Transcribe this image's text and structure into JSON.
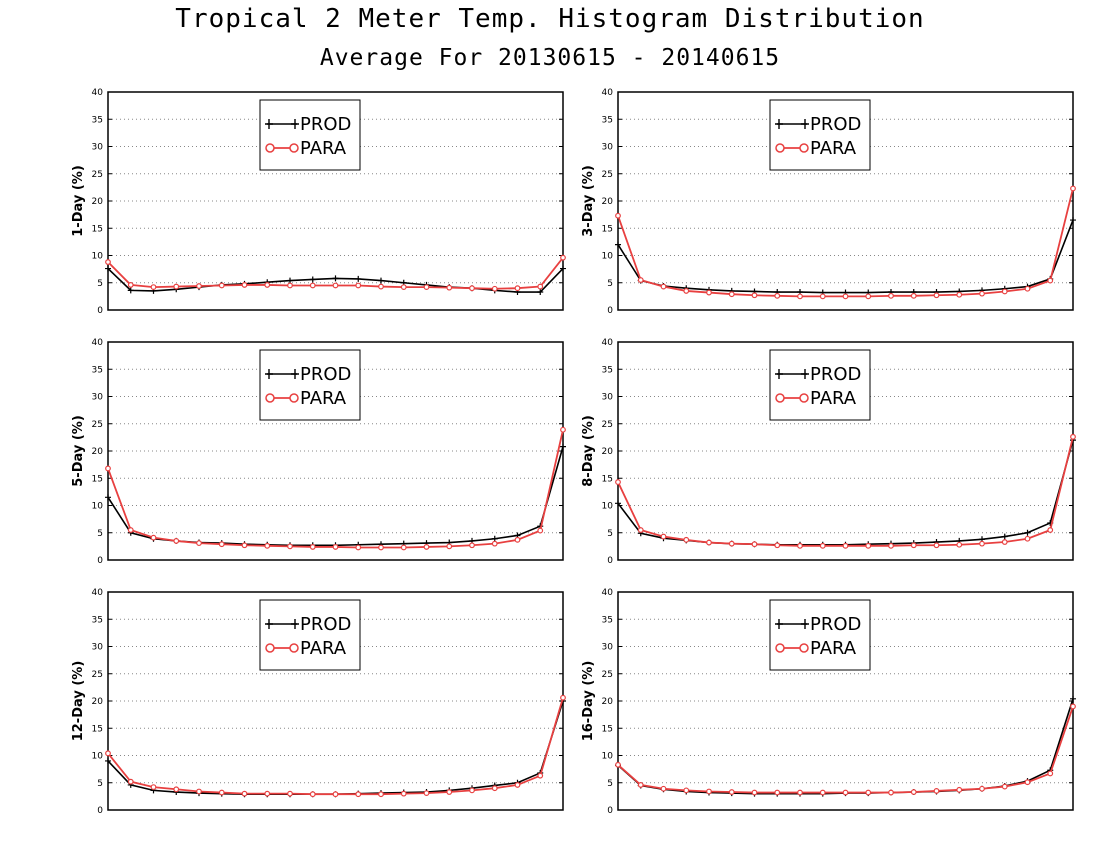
{
  "title": "Tropical 2 Meter Temp. Histogram Distribution",
  "subtitle": "Average For 20130615 - 20140615",
  "colors": {
    "prod": "#000000",
    "para": "#e84040",
    "grid": "#888888"
  },
  "chart_data": [
    {
      "type": "line",
      "ylabel": "1-Day (%)",
      "ylim": [
        0,
        40
      ],
      "yticks": [
        0,
        5,
        10,
        15,
        20,
        25,
        30,
        35,
        40
      ],
      "grid": true,
      "legend_placement": "top-center",
      "series": [
        {
          "name": "PROD",
          "values": [
            7.6,
            3.6,
            3.5,
            3.8,
            4.2,
            4.6,
            4.8,
            5.1,
            5.4,
            5.6,
            5.8,
            5.7,
            5.4,
            5.0,
            4.6,
            4.2,
            4.0,
            3.6,
            3.3,
            3.3,
            7.6
          ]
        },
        {
          "name": "PARA",
          "values": [
            8.8,
            4.6,
            4.2,
            4.3,
            4.4,
            4.5,
            4.6,
            4.6,
            4.5,
            4.5,
            4.5,
            4.5,
            4.3,
            4.2,
            4.2,
            4.1,
            4.0,
            3.9,
            4.0,
            4.3,
            9.6
          ]
        }
      ]
    },
    {
      "type": "line",
      "ylabel": "3-Day (%)",
      "ylim": [
        0,
        40
      ],
      "yticks": [
        0,
        5,
        10,
        15,
        20,
        25,
        30,
        35,
        40
      ],
      "grid": true,
      "legend_placement": "top-center",
      "series": [
        {
          "name": "PROD",
          "values": [
            12.0,
            5.4,
            4.4,
            4.0,
            3.7,
            3.5,
            3.4,
            3.3,
            3.3,
            3.2,
            3.2,
            3.2,
            3.3,
            3.3,
            3.3,
            3.4,
            3.6,
            3.9,
            4.3,
            5.7,
            16.5
          ]
        },
        {
          "name": "PARA",
          "values": [
            17.3,
            5.5,
            4.3,
            3.5,
            3.2,
            2.9,
            2.7,
            2.6,
            2.5,
            2.5,
            2.5,
            2.5,
            2.6,
            2.6,
            2.7,
            2.8,
            3.0,
            3.4,
            3.9,
            5.4,
            22.3
          ]
        }
      ]
    },
    {
      "type": "line",
      "ylabel": "5-Day (%)",
      "ylim": [
        0,
        40
      ],
      "yticks": [
        0,
        5,
        10,
        15,
        20,
        25,
        30,
        35,
        40
      ],
      "grid": true,
      "legend_placement": "top-center",
      "series": [
        {
          "name": "PROD",
          "values": [
            11.5,
            5.0,
            3.9,
            3.5,
            3.2,
            3.1,
            2.9,
            2.8,
            2.7,
            2.7,
            2.7,
            2.8,
            2.9,
            3.0,
            3.1,
            3.2,
            3.5,
            3.9,
            4.5,
            6.2,
            20.8
          ]
        },
        {
          "name": "PARA",
          "values": [
            16.8,
            5.5,
            4.1,
            3.5,
            3.1,
            2.9,
            2.7,
            2.6,
            2.5,
            2.4,
            2.4,
            2.3,
            2.3,
            2.3,
            2.4,
            2.5,
            2.7,
            3.0,
            3.7,
            5.4,
            23.9
          ]
        }
      ]
    },
    {
      "type": "line",
      "ylabel": "8-Day (%)",
      "ylim": [
        0,
        40
      ],
      "yticks": [
        0,
        5,
        10,
        15,
        20,
        25,
        30,
        35,
        40
      ],
      "grid": true,
      "legend_placement": "top-center",
      "series": [
        {
          "name": "PROD",
          "values": [
            10.4,
            4.9,
            4.0,
            3.6,
            3.2,
            3.0,
            2.9,
            2.8,
            2.8,
            2.8,
            2.8,
            2.9,
            3.0,
            3.1,
            3.3,
            3.5,
            3.8,
            4.3,
            5.0,
            6.8,
            22.0
          ]
        },
        {
          "name": "PARA",
          "values": [
            14.3,
            5.5,
            4.3,
            3.7,
            3.2,
            3.0,
            2.9,
            2.7,
            2.6,
            2.6,
            2.6,
            2.6,
            2.6,
            2.7,
            2.7,
            2.8,
            3.0,
            3.3,
            3.9,
            5.5,
            22.6
          ]
        }
      ]
    },
    {
      "type": "line",
      "ylabel": "12-Day (%)",
      "ylim": [
        0,
        40
      ],
      "yticks": [
        0,
        5,
        10,
        15,
        20,
        25,
        30,
        35,
        40
      ],
      "grid": true,
      "legend_placement": "top-center",
      "series": [
        {
          "name": "PROD",
          "values": [
            9.0,
            4.6,
            3.6,
            3.3,
            3.1,
            3.0,
            2.9,
            2.9,
            2.9,
            2.9,
            2.9,
            3.0,
            3.1,
            3.2,
            3.3,
            3.6,
            4.0,
            4.5,
            5.0,
            6.8,
            20.0
          ]
        },
        {
          "name": "PARA",
          "values": [
            10.4,
            5.2,
            4.2,
            3.8,
            3.4,
            3.2,
            3.0,
            3.0,
            3.0,
            2.9,
            2.9,
            2.9,
            2.9,
            3.0,
            3.1,
            3.3,
            3.6,
            4.0,
            4.6,
            6.3,
            20.6
          ]
        }
      ]
    },
    {
      "type": "line",
      "ylabel": "16-Day (%)",
      "ylim": [
        0,
        40
      ],
      "yticks": [
        0,
        5,
        10,
        15,
        20,
        25,
        30,
        35,
        40
      ],
      "grid": true,
      "legend_placement": "top-center",
      "series": [
        {
          "name": "PROD",
          "values": [
            8.2,
            4.5,
            3.8,
            3.4,
            3.2,
            3.1,
            3.0,
            3.0,
            3.0,
            3.0,
            3.1,
            3.1,
            3.2,
            3.3,
            3.4,
            3.6,
            3.9,
            4.4,
            5.3,
            7.3,
            20.4
          ]
        },
        {
          "name": "PARA",
          "values": [
            8.3,
            4.6,
            3.9,
            3.6,
            3.4,
            3.3,
            3.2,
            3.2,
            3.2,
            3.2,
            3.2,
            3.2,
            3.2,
            3.3,
            3.5,
            3.7,
            3.9,
            4.3,
            5.1,
            6.7,
            19.0
          ]
        }
      ]
    }
  ]
}
